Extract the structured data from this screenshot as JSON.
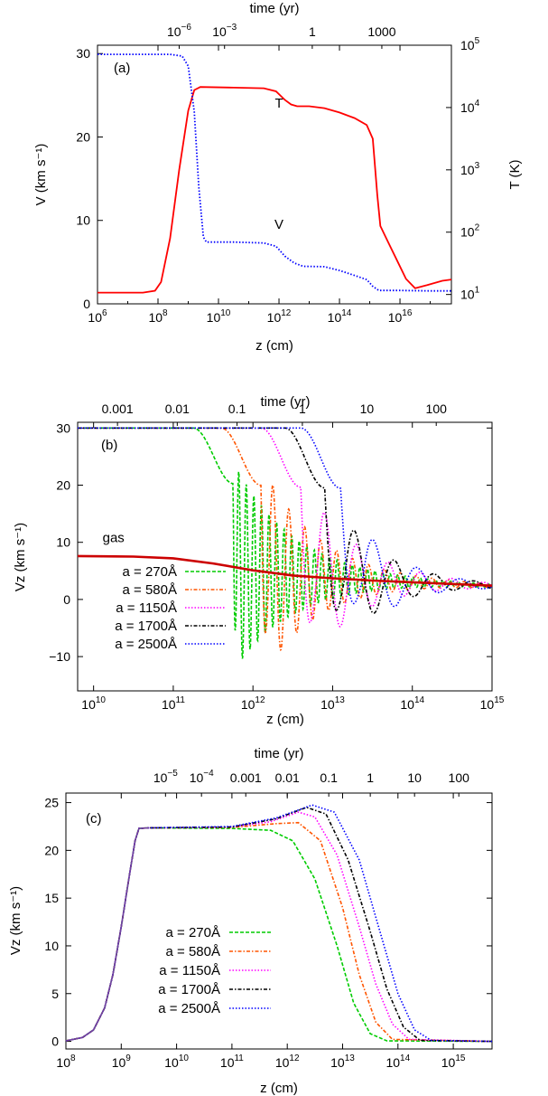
{
  "chart_data": [
    {
      "type": "line",
      "panel_label": "(a)",
      "xlabel": "z (cm)",
      "ylabel": "V (km s⁻¹)",
      "y2label": "T (K)",
      "x2label": "time (yr)",
      "xscale": "log",
      "xlim_exp": [
        6,
        17.7
      ],
      "ylim": [
        0,
        31
      ],
      "y2scale": "log",
      "y2lim_exp": [
        0.85,
        5
      ],
      "x_ticks": [
        "6",
        "8",
        "10",
        "12",
        "14",
        "16"
      ],
      "y_ticks": [
        "0",
        "10",
        "20",
        "30"
      ],
      "y2_ticks": [
        "1",
        "2",
        "3",
        "4",
        "5"
      ],
      "x2_ticks": [
        {
          "label": "10",
          "exp": "−6",
          "z": 8.7
        },
        {
          "label": "10",
          "exp": "−3",
          "z": 10.2
        },
        {
          "label": "1",
          "exp": "",
          "z": 13.1
        },
        {
          "label": "1000",
          "exp": "",
          "z": 15.4
        }
      ],
      "annotations": [
        {
          "text": "T",
          "x": 12.0,
          "y": 23.5
        },
        {
          "text": "V",
          "x": 12.0,
          "y": 9.0
        }
      ],
      "series": [
        {
          "color": "#ff0000",
          "axis": "y2",
          "style": "solid",
          "points": [
            [
              6.0,
              1.03
            ],
            [
              7.5,
              1.03
            ],
            [
              7.9,
              1.06
            ],
            [
              8.1,
              1.2
            ],
            [
              8.4,
              1.9
            ],
            [
              8.7,
              3.0
            ],
            [
              9.0,
              3.95
            ],
            [
              9.2,
              4.28
            ],
            [
              9.4,
              4.33
            ],
            [
              10.5,
              4.32
            ],
            [
              11.5,
              4.31
            ],
            [
              11.9,
              4.26
            ],
            [
              12.2,
              4.12
            ],
            [
              12.4,
              4.05
            ],
            [
              12.6,
              4.02
            ],
            [
              13.0,
              4.02
            ],
            [
              13.5,
              3.99
            ],
            [
              14.0,
              3.92
            ],
            [
              14.5,
              3.83
            ],
            [
              14.9,
              3.72
            ],
            [
              15.1,
              3.5
            ],
            [
              15.25,
              2.6
            ],
            [
              15.35,
              2.1
            ],
            [
              15.6,
              1.85
            ],
            [
              15.9,
              1.55
            ],
            [
              16.2,
              1.25
            ],
            [
              16.5,
              1.1
            ],
            [
              16.9,
              1.15
            ],
            [
              17.4,
              1.22
            ],
            [
              17.7,
              1.24
            ]
          ]
        },
        {
          "color": "#0000ff",
          "axis": "y1",
          "style": "dotted",
          "points": [
            [
              6.0,
              29.9
            ],
            [
              8.4,
              29.9
            ],
            [
              8.8,
              29.7
            ],
            [
              9.0,
              28.5
            ],
            [
              9.2,
              23.0
            ],
            [
              9.35,
              14.0
            ],
            [
              9.5,
              8.0
            ],
            [
              9.6,
              7.4
            ],
            [
              10.5,
              7.4
            ],
            [
              11.5,
              7.3
            ],
            [
              11.9,
              6.9
            ],
            [
              12.2,
              5.7
            ],
            [
              12.5,
              4.9
            ],
            [
              12.8,
              4.5
            ],
            [
              13.5,
              4.45
            ],
            [
              14.0,
              4.0
            ],
            [
              14.5,
              3.4
            ],
            [
              14.9,
              2.9
            ],
            [
              15.1,
              2.1
            ],
            [
              15.3,
              1.6
            ],
            [
              16.0,
              1.6
            ],
            [
              17.0,
              1.55
            ],
            [
              17.7,
              1.55
            ]
          ]
        }
      ]
    },
    {
      "type": "line",
      "panel_label": "(b)",
      "xlabel": "z (cm)",
      "ylabel": "Vz (km s⁻¹)",
      "x2label": "time (yr)",
      "xscale": "log",
      "xlim_exp": [
        9.8,
        15
      ],
      "ylim": [
        -16,
        31
      ],
      "x_ticks": [
        "10",
        "11",
        "12",
        "13",
        "14",
        "15"
      ],
      "y_ticks": [
        "−10",
        "0",
        "10",
        "20",
        "30"
      ],
      "x2_ticks": [
        {
          "label": "0.001",
          "z": 10.3
        },
        {
          "label": "0.01",
          "z": 11.05
        },
        {
          "label": "0.1",
          "z": 11.8
        },
        {
          "label": "1",
          "z": 12.62
        },
        {
          "label": "10",
          "z": 13.43
        },
        {
          "label": "100",
          "z": 14.3
        }
      ],
      "annotations": [
        {
          "text": "gas",
          "x": 10.25,
          "y": 10.0
        }
      ],
      "gas": {
        "name": "gas",
        "color": "#cc0000",
        "points": [
          [
            9.8,
            7.6
          ],
          [
            10.5,
            7.5
          ],
          [
            11.0,
            7.2
          ],
          [
            11.5,
            6.3
          ],
          [
            12.0,
            5.1
          ],
          [
            12.5,
            4.2
          ],
          [
            13.0,
            3.7
          ],
          [
            13.5,
            3.3
          ],
          [
            14.0,
            3.0
          ],
          [
            14.5,
            2.7
          ],
          [
            15.0,
            2.4
          ]
        ]
      },
      "series": [
        {
          "name": "a = 270Å",
          "color": "#00cc00",
          "style": "dashed",
          "drop_z": 11.75,
          "period": 0.095,
          "amp0": 18.5,
          "decay": 0.75
        },
        {
          "name": "a = 580Å",
          "color": "#ff5500",
          "style": "dashdot",
          "drop_z": 12.1,
          "period": 0.2,
          "amp0": 19,
          "decay": 0.7
        },
        {
          "name": "a = 1150Å",
          "color": "#ff00ff",
          "style": "dotted",
          "drop_z": 12.6,
          "period": 0.4,
          "amp0": 18,
          "decay": 0.65
        },
        {
          "name": "a = 1700Å",
          "color": "#000000",
          "style": "dashdot",
          "drop_z": 12.9,
          "period": 0.5,
          "amp0": 16,
          "decay": 0.6
        },
        {
          "name": "a = 2500Å",
          "color": "#0000ff",
          "style": "dotted",
          "drop_z": 13.1,
          "period": 0.55,
          "amp0": 15,
          "decay": 0.55
        }
      ]
    },
    {
      "type": "line",
      "panel_label": "(c)",
      "xlabel": "z (cm)",
      "ylabel": "Vz (km s⁻¹)",
      "x2label": "time (yr)",
      "xscale": "log",
      "xlim_exp": [
        8,
        15.7
      ],
      "ylim": [
        -0.8,
        26
      ],
      "x_ticks": [
        "8",
        "9",
        "10",
        "11",
        "12",
        "13",
        "14",
        "15"
      ],
      "y_ticks": [
        "0",
        "5",
        "10",
        "15",
        "20",
        "25"
      ],
      "x2_ticks": [
        {
          "label": "10",
          "exp": "−5",
          "z": 9.8
        },
        {
          "label": "10",
          "exp": "−4",
          "z": 10.45
        },
        {
          "label": "0.001",
          "z": 11.25
        },
        {
          "label": "0.01",
          "z": 12.0
        },
        {
          "label": "0.1",
          "z": 12.75
        },
        {
          "label": "1",
          "z": 13.5
        },
        {
          "label": "10",
          "z": 14.3
        },
        {
          "label": "100",
          "z": 15.1
        }
      ],
      "rise": [
        [
          8.0,
          0.05
        ],
        [
          8.3,
          0.4
        ],
        [
          8.5,
          1.2
        ],
        [
          8.7,
          3.5
        ],
        [
          8.85,
          7.0
        ],
        [
          9.0,
          12.0
        ],
        [
          9.15,
          17.5
        ],
        [
          9.25,
          21.0
        ],
        [
          9.32,
          22.3
        ],
        [
          9.5,
          22.35
        ]
      ],
      "series": [
        {
          "name": "a = 270Å",
          "color": "#00cc00",
          "style": "dashed",
          "points": [
            [
              9.5,
              22.35
            ],
            [
              11.0,
              22.3
            ],
            [
              11.7,
              22.1
            ],
            [
              12.1,
              21.0
            ],
            [
              12.5,
              17.0
            ],
            [
              12.9,
              10.0
            ],
            [
              13.2,
              4.0
            ],
            [
              13.5,
              0.8
            ],
            [
              13.8,
              0.05
            ],
            [
              15.7,
              0.0
            ]
          ]
        },
        {
          "name": "a = 580Å",
          "color": "#ff5500",
          "style": "dashdot",
          "points": [
            [
              9.5,
              22.35
            ],
            [
              11.0,
              22.4
            ],
            [
              11.8,
              22.8
            ],
            [
              12.2,
              22.9
            ],
            [
              12.6,
              21.0
            ],
            [
              13.0,
              14.0
            ],
            [
              13.3,
              7.0
            ],
            [
              13.6,
              2.0
            ],
            [
              13.9,
              0.2
            ],
            [
              15.7,
              0.0
            ]
          ]
        },
        {
          "name": "a = 1150Å",
          "color": "#ff00ff",
          "style": "dotted",
          "points": [
            [
              9.5,
              22.35
            ],
            [
              11.0,
              22.45
            ],
            [
              11.7,
              23.0
            ],
            [
              12.2,
              24.0
            ],
            [
              12.5,
              23.5
            ],
            [
              12.9,
              19.5
            ],
            [
              13.3,
              12.0
            ],
            [
              13.6,
              6.0
            ],
            [
              13.9,
              1.8
            ],
            [
              14.2,
              0.2
            ],
            [
              15.7,
              0.0
            ]
          ]
        },
        {
          "name": "a = 1700Å",
          "color": "#000000",
          "style": "dashdot",
          "points": [
            [
              9.5,
              22.35
            ],
            [
              11.0,
              22.45
            ],
            [
              11.8,
              23.3
            ],
            [
              12.35,
              24.5
            ],
            [
              12.7,
              23.8
            ],
            [
              13.1,
              19.0
            ],
            [
              13.5,
              11.5
            ],
            [
              13.8,
              5.5
            ],
            [
              14.1,
              1.5
            ],
            [
              14.4,
              0.1
            ],
            [
              15.7,
              0.0
            ]
          ]
        },
        {
          "name": "a = 2500Å",
          "color": "#0000ff",
          "style": "dotted",
          "points": [
            [
              9.5,
              22.35
            ],
            [
              11.0,
              22.5
            ],
            [
              11.8,
              23.4
            ],
            [
              12.45,
              24.75
            ],
            [
              12.85,
              24.0
            ],
            [
              13.3,
              19.0
            ],
            [
              13.7,
              11.0
            ],
            [
              14.0,
              5.0
            ],
            [
              14.3,
              1.2
            ],
            [
              14.6,
              0.1
            ],
            [
              15.7,
              0.0
            ]
          ]
        }
      ]
    }
  ]
}
